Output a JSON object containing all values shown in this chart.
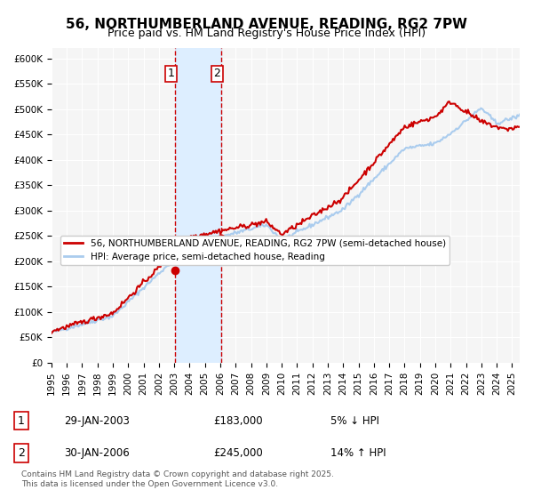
{
  "title": "56, NORTHUMBERLAND AVENUE, READING, RG2 7PW",
  "subtitle": "Price paid vs. HM Land Registry's House Price Index (HPI)",
  "legend_label_red": "56, NORTHUMBERLAND AVENUE, READING, RG2 7PW (semi-detached house)",
  "legend_label_blue": "HPI: Average price, semi-detached house, Reading",
  "sale1_label": "1",
  "sale1_date": "29-JAN-2003",
  "sale1_price": "£183,000",
  "sale1_hpi": "5% ↓ HPI",
  "sale1_year": 2003.08,
  "sale1_price_val": 183000,
  "sale2_label": "2",
  "sale2_date": "30-JAN-2006",
  "sale2_price": "£245,000",
  "sale2_hpi": "14% ↑ HPI",
  "sale2_year": 2006.08,
  "sale2_price_val": 245000,
  "highlight_x1": 2003.08,
  "highlight_x2": 2006.08,
  "footnote": "Contains HM Land Registry data © Crown copyright and database right 2025.\nThis data is licensed under the Open Government Licence v3.0.",
  "ylim_min": 0,
  "ylim_max": 620000,
  "xlim_min": 1995,
  "xlim_max": 2025.5,
  "background_color": "#ffffff",
  "plot_bg_color": "#f5f5f5",
  "red_color": "#cc0000",
  "blue_color": "#aaccee",
  "highlight_color": "#ddeeff",
  "highlight_border": "#cc0000"
}
